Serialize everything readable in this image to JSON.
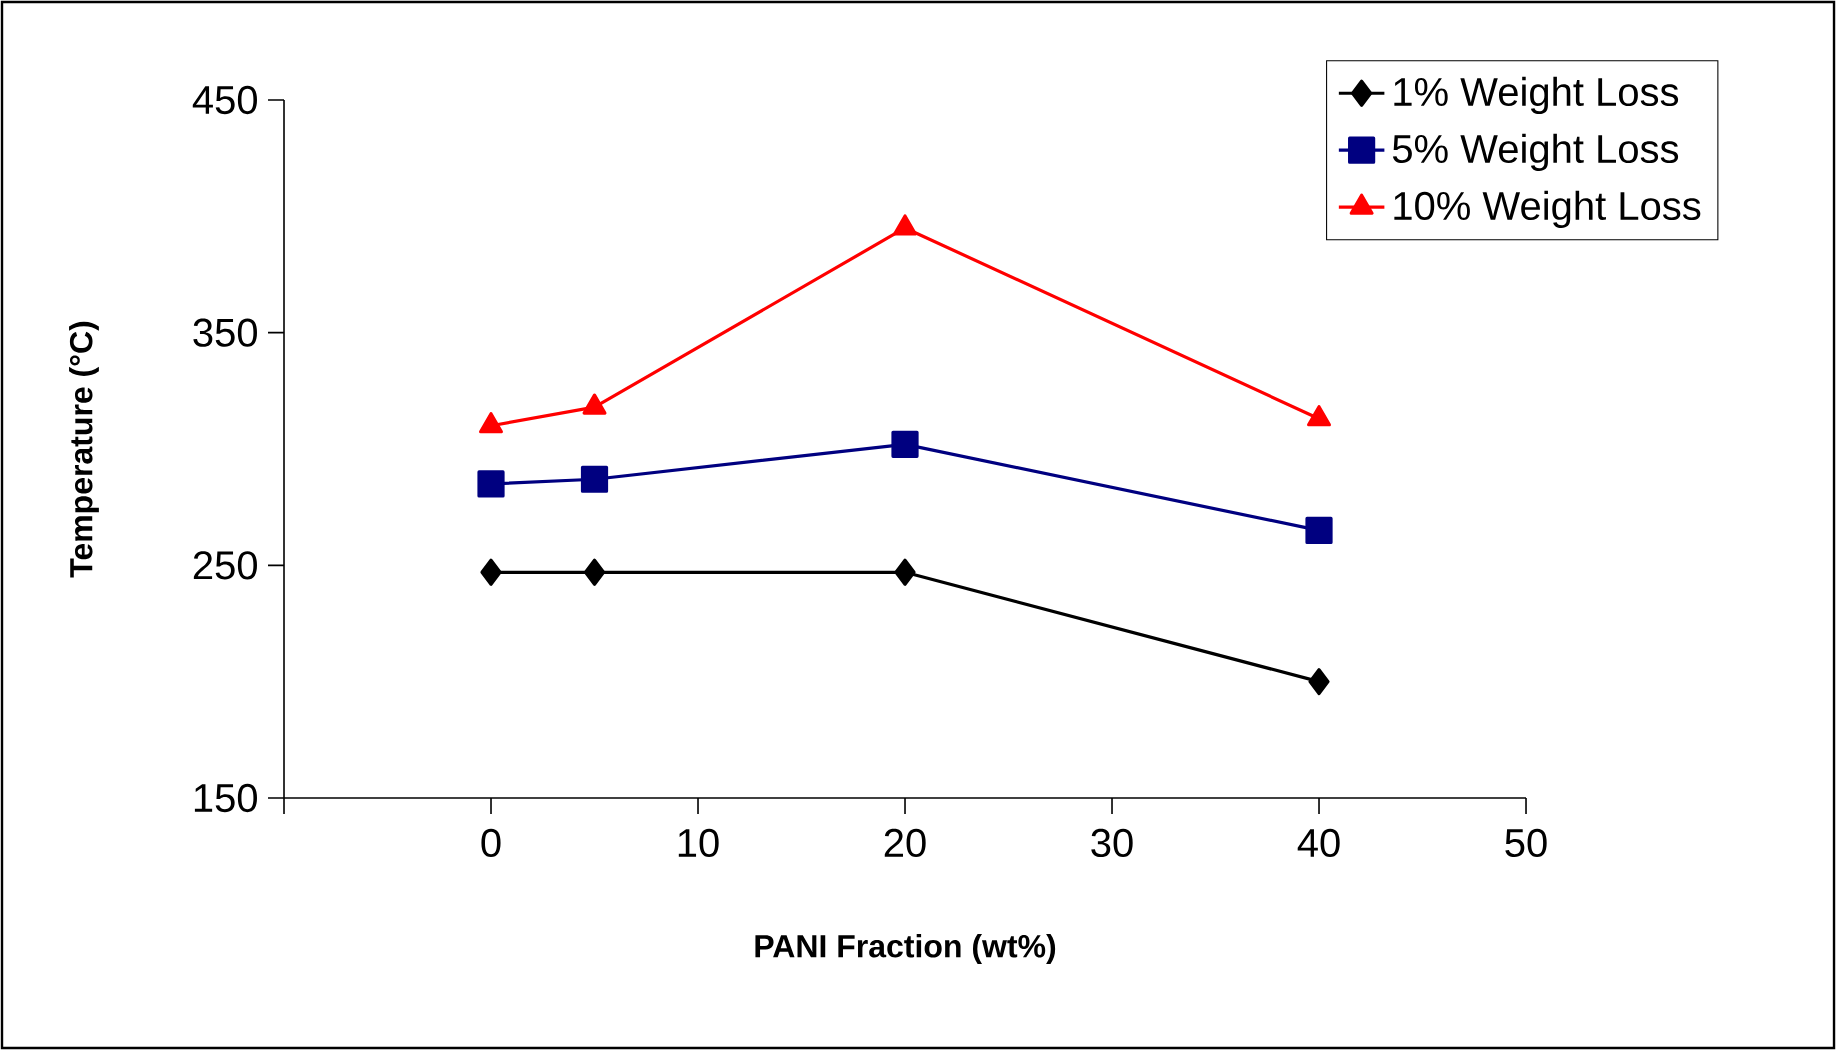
{
  "chart_data": {
    "type": "line",
    "xlabel": "PANI Fraction (wt%)",
    "ylabel": "Temperature (°C)",
    "x": [
      0,
      5,
      20,
      40
    ],
    "series": [
      {
        "name": "1% Weight Loss",
        "color": "#000000",
        "marker": "diamond",
        "values": [
          247,
          247,
          247,
          200
        ]
      },
      {
        "name": "5% Weight Loss",
        "color": "#000080",
        "marker": "square",
        "values": [
          285,
          287,
          302,
          265
        ]
      },
      {
        "name": "10% Weight Loss",
        "color": "#ff0000",
        "marker": "triangle",
        "values": [
          310,
          318,
          395,
          313
        ]
      }
    ],
    "xlim": [
      -10,
      50
    ],
    "xticks": [
      {
        "value": -10,
        "label": null
      },
      0,
      10,
      20,
      30,
      40,
      50
    ],
    "ylim": [
      150,
      450
    ],
    "yticks": [
      150,
      250,
      350,
      450
    ],
    "grid": false,
    "legend": "top right",
    "line_style": "solid"
  }
}
